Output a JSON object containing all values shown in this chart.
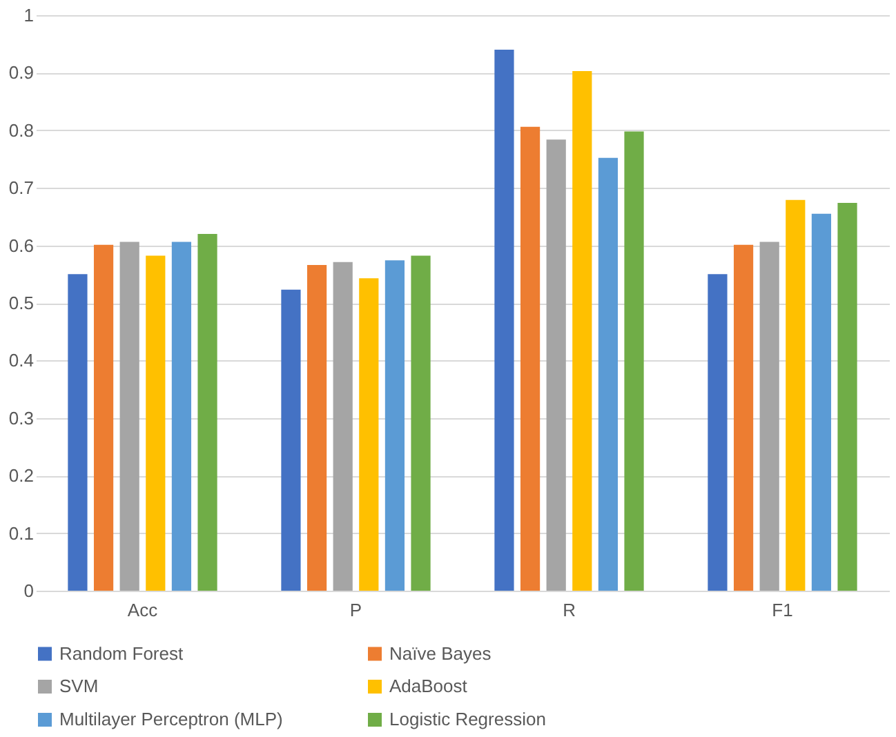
{
  "chart_data": {
    "type": "bar",
    "categories": [
      "Acc",
      "P",
      "R",
      "F1"
    ],
    "series": [
      {
        "name": "Random Forest",
        "color": "#4472c4",
        "values": [
          0.55,
          0.523,
          0.94,
          0.55
        ]
      },
      {
        "name": "Naïve Bayes",
        "color": "#ed7d31",
        "values": [
          0.601,
          0.566,
          0.806,
          0.601
        ]
      },
      {
        "name": "SVM",
        "color": "#a5a5a5",
        "values": [
          0.606,
          0.571,
          0.784,
          0.606
        ]
      },
      {
        "name": "AdaBoost",
        "color": "#ffc000",
        "values": [
          0.582,
          0.543,
          0.903,
          0.679
        ]
      },
      {
        "name": "Multilayer Perceptron (MLP)",
        "color": "#5b9bd5",
        "values": [
          0.606,
          0.574,
          0.752,
          0.655
        ]
      },
      {
        "name": "Logistic Regression",
        "color": "#70ad47",
        "values": [
          0.62,
          0.582,
          0.798,
          0.674
        ]
      }
    ],
    "ylim": [
      0,
      1
    ],
    "yticks": [
      0,
      0.1,
      0.2,
      0.3,
      0.4,
      0.5,
      0.6,
      0.7,
      0.8,
      0.9,
      1
    ],
    "grid": "y",
    "legend": "bottom"
  }
}
